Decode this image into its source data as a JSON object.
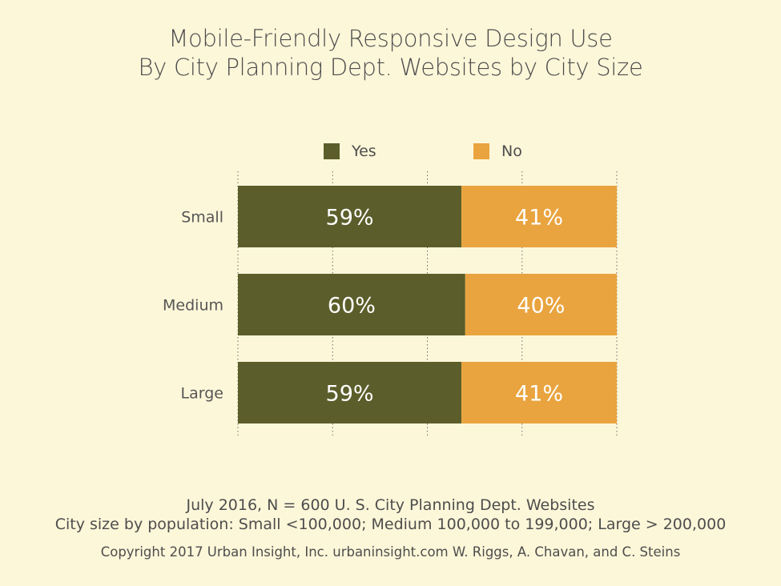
{
  "title_line1": "Mobile-Friendly Responsive Design Use",
  "title_line2": "By City Planning Dept. Websites by City Size",
  "footer": {
    "line1": "July 2016, N = 600 U. S. City Planning Dept. Websites",
    "line2": "City size by population:  Small <100,000; Medium 100,000 to 199,000; Large > 200,000",
    "line3": "Copyright 2017 Urban Insight, Inc. urbaninsight.com  W. Riggs, A. Chavan, and C. Steins"
  },
  "chart_data": {
    "type": "bar",
    "orientation": "horizontal",
    "stacked": true,
    "percent": true,
    "categories": [
      "Small",
      "Medium",
      "Large"
    ],
    "series": [
      {
        "name": "Yes",
        "values": [
          59,
          60,
          59
        ],
        "labels": [
          "59%",
          "60%",
          "59%"
        ],
        "color": "#5b5e2a"
      },
      {
        "name": "No",
        "values": [
          41,
          40,
          41
        ],
        "labels": [
          "41%",
          "40%",
          "41%"
        ],
        "color": "#e9a43f"
      }
    ],
    "xlim": [
      0,
      100
    ],
    "grid": "vertical dotted",
    "legend_position": "top",
    "label_color": "#ffffff"
  }
}
